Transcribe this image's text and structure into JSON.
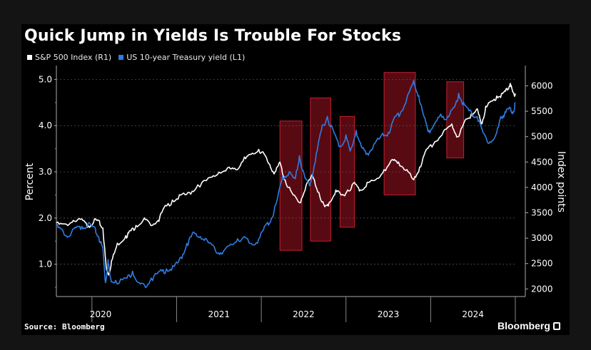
{
  "header": {
    "title": "Quick Jump in Yields Is Trouble For Stocks"
  },
  "footer": {
    "source": "Source: Bloomberg",
    "brand": "Bloomberg"
  },
  "colors": {
    "background": "#000000",
    "sp500": "#ffffff",
    "treasury": "#2f7de1",
    "highlight_fill": "#7a0e1a",
    "highlight_stroke": "#c41e30",
    "grid": "#5a5a5a"
  },
  "chart_data": {
    "type": "line",
    "legend": {
      "placement": "top-left",
      "entries": [
        "S&P 500 Index (R1)",
        "US 10-year Treasury yield (L1)"
      ]
    },
    "x_ticks": [
      "2020",
      "2021",
      "2022",
      "2023",
      "2024"
    ],
    "x_range": [
      2019.58,
      2025.0
    ],
    "left_axis": {
      "label": "Percent",
      "range": [
        0.3,
        5.3
      ],
      "ticks": [
        "1.0",
        "2.0",
        "3.0",
        "4.0",
        "5.0"
      ]
    },
    "right_axis": {
      "label": "Index points",
      "range": [
        1850,
        6400
      ],
      "ticks": [
        "2000",
        "2500",
        "3000",
        "3500",
        "4000",
        "4500",
        "5000",
        "5500",
        "6000"
      ]
    },
    "grid": true,
    "series": [
      {
        "name": "S&P 500 Index (R1)",
        "axis": "right",
        "points": [
          [
            2019.58,
            3300
          ],
          [
            2019.68,
            3280
          ],
          [
            2019.78,
            3350
          ],
          [
            2019.88,
            3380
          ],
          [
            2019.96,
            3240
          ],
          [
            2020.03,
            3380
          ],
          [
            2020.08,
            3350
          ],
          [
            2020.13,
            3200
          ],
          [
            2020.17,
            2400
          ],
          [
            2020.2,
            2300
          ],
          [
            2020.23,
            2550
          ],
          [
            2020.3,
            2900
          ],
          [
            2020.4,
            3050
          ],
          [
            2020.45,
            3150
          ],
          [
            2020.52,
            3250
          ],
          [
            2020.62,
            3400
          ],
          [
            2020.68,
            3300
          ],
          [
            2020.78,
            3350
          ],
          [
            2020.85,
            3600
          ],
          [
            2020.95,
            3750
          ],
          [
            2021.05,
            3850
          ],
          [
            2021.15,
            3900
          ],
          [
            2021.25,
            4050
          ],
          [
            2021.4,
            4200
          ],
          [
            2021.5,
            4300
          ],
          [
            2021.62,
            4400
          ],
          [
            2021.7,
            4350
          ],
          [
            2021.8,
            4600
          ],
          [
            2021.88,
            4650
          ],
          [
            2021.97,
            4750
          ],
          [
            2022.02,
            4700
          ],
          [
            2022.1,
            4450
          ],
          [
            2022.16,
            4300
          ],
          [
            2022.22,
            4500
          ],
          [
            2022.28,
            4150
          ],
          [
            2022.36,
            3900
          ],
          [
            2022.45,
            3700
          ],
          [
            2022.53,
            4050
          ],
          [
            2022.6,
            4250
          ],
          [
            2022.68,
            3900
          ],
          [
            2022.75,
            3620
          ],
          [
            2022.8,
            3700
          ],
          [
            2022.88,
            3950
          ],
          [
            2022.95,
            3850
          ],
          [
            2023.02,
            3950
          ],
          [
            2023.1,
            4100
          ],
          [
            2023.17,
            3950
          ],
          [
            2023.25,
            4100
          ],
          [
            2023.35,
            4150
          ],
          [
            2023.45,
            4350
          ],
          [
            2023.55,
            4550
          ],
          [
            2023.62,
            4500
          ],
          [
            2023.72,
            4350
          ],
          [
            2023.8,
            4150
          ],
          [
            2023.87,
            4400
          ],
          [
            2023.95,
            4750
          ],
          [
            2024.05,
            4900
          ],
          [
            2024.15,
            5100
          ],
          [
            2024.25,
            5250
          ],
          [
            2024.32,
            5000
          ],
          [
            2024.4,
            5300
          ],
          [
            2024.48,
            5450
          ],
          [
            2024.55,
            5550
          ],
          [
            2024.6,
            5250
          ],
          [
            2024.65,
            5600
          ],
          [
            2024.72,
            5700
          ],
          [
            2024.78,
            5800
          ],
          [
            2024.85,
            5850
          ],
          [
            2024.9,
            5950
          ],
          [
            2024.94,
            6050
          ],
          [
            2024.97,
            5880
          ],
          [
            2025.0,
            5850
          ]
        ]
      },
      {
        "name": "US 10-year Treasury yield (L1)",
        "axis": "left",
        "points": [
          [
            2019.58,
            1.85
          ],
          [
            2019.65,
            1.75
          ],
          [
            2019.72,
            1.6
          ],
          [
            2019.8,
            1.8
          ],
          [
            2019.88,
            1.82
          ],
          [
            2019.96,
            1.9
          ],
          [
            2020.03,
            1.8
          ],
          [
            2020.08,
            1.6
          ],
          [
            2020.13,
            1.35
          ],
          [
            2020.16,
            0.6
          ],
          [
            2020.19,
            1.1
          ],
          [
            2020.22,
            0.7
          ],
          [
            2020.28,
            0.65
          ],
          [
            2020.4,
            0.7
          ],
          [
            2020.48,
            0.85
          ],
          [
            2020.56,
            0.6
          ],
          [
            2020.62,
            0.55
          ],
          [
            2020.7,
            0.7
          ],
          [
            2020.8,
            0.85
          ],
          [
            2020.88,
            0.9
          ],
          [
            2020.97,
            0.95
          ],
          [
            2021.05,
            1.15
          ],
          [
            2021.12,
            1.45
          ],
          [
            2021.2,
            1.7
          ],
          [
            2021.28,
            1.6
          ],
          [
            2021.35,
            1.55
          ],
          [
            2021.45,
            1.35
          ],
          [
            2021.52,
            1.25
          ],
          [
            2021.62,
            1.4
          ],
          [
            2021.72,
            1.55
          ],
          [
            2021.8,
            1.6
          ],
          [
            2021.88,
            1.45
          ],
          [
            2021.97,
            1.55
          ],
          [
            2022.05,
            1.85
          ],
          [
            2022.12,
            2.0
          ],
          [
            2022.18,
            2.35
          ],
          [
            2022.25,
            2.9
          ],
          [
            2022.33,
            3.0
          ],
          [
            2022.4,
            2.85
          ],
          [
            2022.45,
            3.35
          ],
          [
            2022.52,
            2.85
          ],
          [
            2022.58,
            2.75
          ],
          [
            2022.65,
            3.4
          ],
          [
            2022.72,
            4.0
          ],
          [
            2022.78,
            4.2
          ],
          [
            2022.85,
            3.9
          ],
          [
            2022.93,
            3.55
          ],
          [
            2023.0,
            3.8
          ],
          [
            2023.05,
            3.45
          ],
          [
            2023.12,
            3.9
          ],
          [
            2023.18,
            3.55
          ],
          [
            2023.25,
            3.4
          ],
          [
            2023.33,
            3.6
          ],
          [
            2023.42,
            3.8
          ],
          [
            2023.5,
            3.85
          ],
          [
            2023.58,
            4.2
          ],
          [
            2023.65,
            4.3
          ],
          [
            2023.72,
            4.6
          ],
          [
            2023.8,
            4.98
          ],
          [
            2023.86,
            4.65
          ],
          [
            2023.92,
            4.2
          ],
          [
            2023.98,
            3.9
          ],
          [
            2024.05,
            4.05
          ],
          [
            2024.12,
            4.25
          ],
          [
            2024.2,
            4.2
          ],
          [
            2024.28,
            4.4
          ],
          [
            2024.33,
            4.7
          ],
          [
            2024.4,
            4.45
          ],
          [
            2024.48,
            4.3
          ],
          [
            2024.55,
            4.2
          ],
          [
            2024.62,
            3.85
          ],
          [
            2024.7,
            3.65
          ],
          [
            2024.77,
            3.8
          ],
          [
            2024.83,
            4.2
          ],
          [
            2024.88,
            4.3
          ],
          [
            2024.93,
            4.4
          ],
          [
            2024.97,
            4.3
          ],
          [
            2025.0,
            4.5
          ]
        ]
      }
    ],
    "highlights": [
      {
        "x": [
          2022.22,
          2022.48
        ],
        "y_left": [
          1.3,
          4.1
        ]
      },
      {
        "x": [
          2022.58,
          2022.82
        ],
        "y_left": [
          1.5,
          4.6
        ]
      },
      {
        "x": [
          2022.93,
          2023.1
        ],
        "y_left": [
          1.8,
          4.2
        ]
      },
      {
        "x": [
          2023.45,
          2023.82
        ],
        "y_left": [
          2.5,
          5.15
        ]
      },
      {
        "x": [
          2024.19,
          2024.39
        ],
        "y_left": [
          3.3,
          4.95
        ]
      }
    ]
  }
}
